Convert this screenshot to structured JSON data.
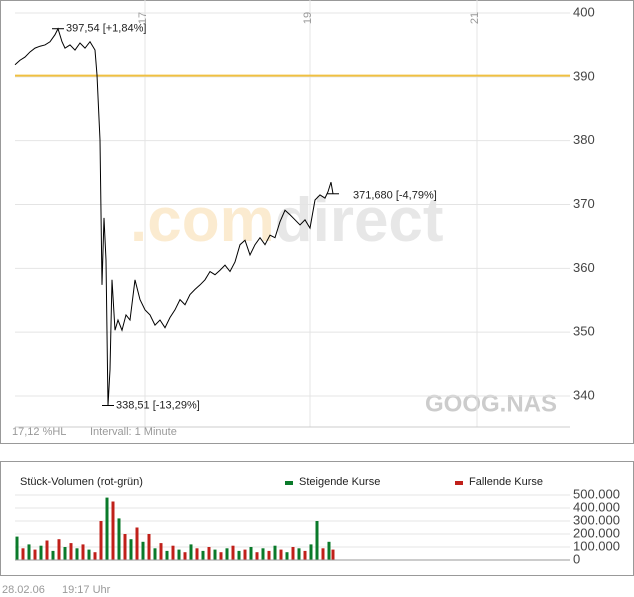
{
  "chart_data": [
    {
      "type": "line",
      "color": "#000000",
      "x": [
        0,
        5,
        10,
        15,
        20,
        25,
        30,
        35,
        40,
        43,
        47,
        50,
        55,
        60,
        65,
        70,
        75,
        80,
        82,
        85,
        87,
        89,
        91,
        93,
        95,
        97,
        100,
        103,
        107,
        111,
        115,
        120,
        125,
        130,
        135,
        140,
        145,
        150,
        155,
        160,
        165,
        170,
        175,
        180,
        185,
        190,
        195,
        200,
        205,
        210,
        215,
        220,
        225,
        230,
        235,
        240,
        245,
        250,
        255,
        260,
        265,
        270,
        275,
        280,
        285,
        290,
        295,
        300,
        305,
        310,
        313,
        316,
        318
      ],
      "values": [
        391.9,
        392.6,
        393.1,
        393.9,
        394.5,
        394.8,
        395.0,
        395.5,
        396.6,
        397.54,
        395.5,
        394.5,
        395.0,
        394.2,
        395.3,
        394.5,
        395.5,
        394.2,
        390.3,
        380.1,
        357.4,
        367.9,
        361.3,
        338.51,
        344.1,
        358.2,
        350.3,
        351.9,
        350.3,
        352.7,
        351.9,
        358.2,
        355.1,
        353.5,
        352.7,
        351.1,
        351.9,
        350.7,
        352.3,
        353.5,
        355.1,
        354.3,
        355.9,
        356.7,
        357.4,
        358.2,
        359.5,
        359.0,
        359.7,
        360.5,
        359.5,
        361.0,
        363.7,
        364.4,
        362.1,
        363.7,
        364.8,
        363.7,
        365.2,
        364.8,
        367.3,
        369.1,
        368.4,
        367.6,
        366.8,
        367.6,
        366.3,
        370.7,
        371.5,
        371.0,
        372.0,
        373.5,
        371.68
      ],
      "xlim": [
        0,
        555
      ],
      "xticks": [
        {
          "value": 130,
          "label": "17"
        },
        {
          "value": 295,
          "label": "19"
        },
        {
          "value": 462,
          "label": "21"
        }
      ],
      "ylim": [
        335.14,
        402.04
      ],
      "yticks": [
        340,
        350,
        360,
        370,
        380,
        390,
        400
      ],
      "grid": true,
      "reference_line": {
        "value": 390.2,
        "color": "#f0c040"
      },
      "annotations": [
        {
          "text": "397,54 [+1,84%]",
          "x": 43,
          "y": 397.54
        },
        {
          "text": "338,51 [-13,29%]",
          "x": 93,
          "y": 338.51
        },
        {
          "text": "371,680 [-4,79%]",
          "x": 318,
          "y": 371.68
        }
      ],
      "watermark": [
        ".com",
        "direct"
      ],
      "symbol": "GOOG.NAS",
      "range_label": "17,12 %HL",
      "interval_label": "Intervall: 1 Minute"
    },
    {
      "type": "bar",
      "title": "Stück-Volumen (rot-grün)",
      "x": [
        2,
        8,
        14,
        20,
        26,
        32,
        38,
        44,
        50,
        56,
        62,
        68,
        74,
        80,
        86,
        92,
        98,
        104,
        110,
        116,
        122,
        128,
        134,
        140,
        146,
        152,
        158,
        164,
        170,
        176,
        182,
        188,
        194,
        200,
        206,
        212,
        218,
        224,
        230,
        236,
        242,
        248,
        254,
        260,
        266,
        272,
        278,
        284,
        290,
        296,
        302,
        308,
        314,
        318
      ],
      "series": [
        {
          "name": "Steigende Kurse",
          "color": "#0a7a2a",
          "values": [
            180000,
            null,
            120000,
            null,
            110000,
            null,
            70000,
            null,
            100000,
            null,
            90000,
            null,
            80000,
            null,
            null,
            480000,
            null,
            320000,
            null,
            160000,
            null,
            140000,
            null,
            90000,
            null,
            70000,
            null,
            80000,
            null,
            120000,
            null,
            70000,
            null,
            80000,
            null,
            90000,
            null,
            70000,
            null,
            100000,
            null,
            90000,
            null,
            110000,
            null,
            60000,
            null,
            90000,
            null,
            120000,
            300000,
            null,
            140000,
            null
          ]
        },
        {
          "name": "Fallende Kurse",
          "color": "#c0201a",
          "values": [
            null,
            90000,
            null,
            80000,
            null,
            150000,
            null,
            160000,
            null,
            130000,
            null,
            120000,
            null,
            60000,
            300000,
            null,
            450000,
            null,
            200000,
            null,
            250000,
            null,
            200000,
            null,
            130000,
            null,
            110000,
            null,
            60000,
            null,
            90000,
            null,
            100000,
            null,
            60000,
            null,
            110000,
            null,
            80000,
            null,
            60000,
            null,
            70000,
            null,
            80000,
            null,
            100000,
            null,
            70000,
            null,
            null,
            90000,
            null,
            80000
          ]
        }
      ],
      "xlim": [
        0,
        555
      ],
      "ylim": [
        0,
        520000
      ],
      "yticks": [
        0,
        {
          "value": 100000,
          "label": "100.000"
        },
        {
          "value": 200000,
          "label": "200.000"
        },
        {
          "value": 300000,
          "label": "300.000"
        },
        {
          "value": 400000,
          "label": "400.000"
        },
        {
          "value": 500000,
          "label": "500.000"
        }
      ]
    }
  ],
  "footer": {
    "date": "28.02.06",
    "time": "19:17 Uhr"
  }
}
